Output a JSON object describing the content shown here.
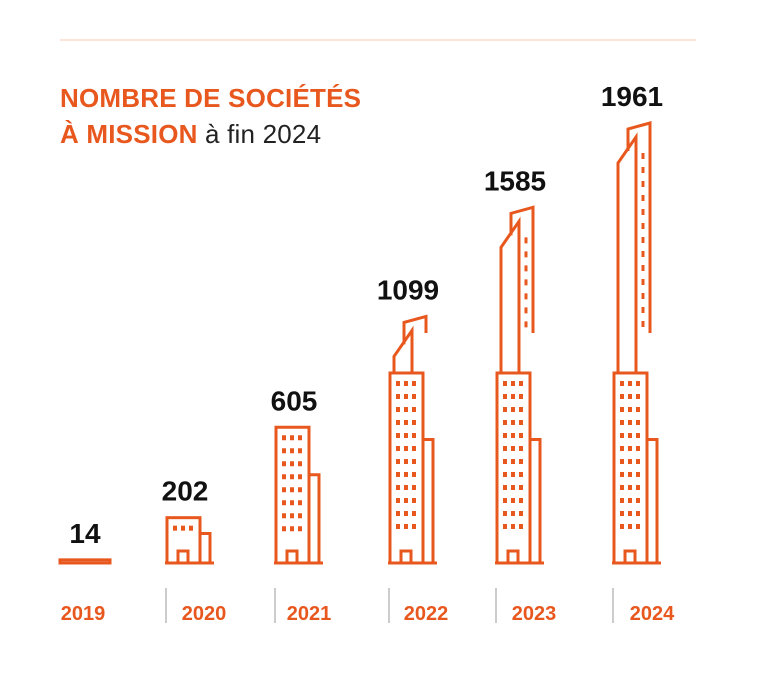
{
  "header": {
    "title_line1": "NOMBRE DE SOCIÉTÉS",
    "title_line2_bold": "À MISSION",
    "title_line2_rest": " à fin 2024"
  },
  "colors": {
    "accent": "#e8581e",
    "value_text": "#111111"
  },
  "chart_data": {
    "type": "bar",
    "style": "building pictograms",
    "title": "NOMBRE DE SOCIÉTÉS À MISSION à fin 2024",
    "categories": [
      "2019",
      "2020",
      "2021",
      "2022",
      "2023",
      "2024"
    ],
    "values": [
      14,
      202,
      605,
      1099,
      1585,
      1961
    ],
    "xlabel": "",
    "ylabel": "",
    "grid": false
  }
}
